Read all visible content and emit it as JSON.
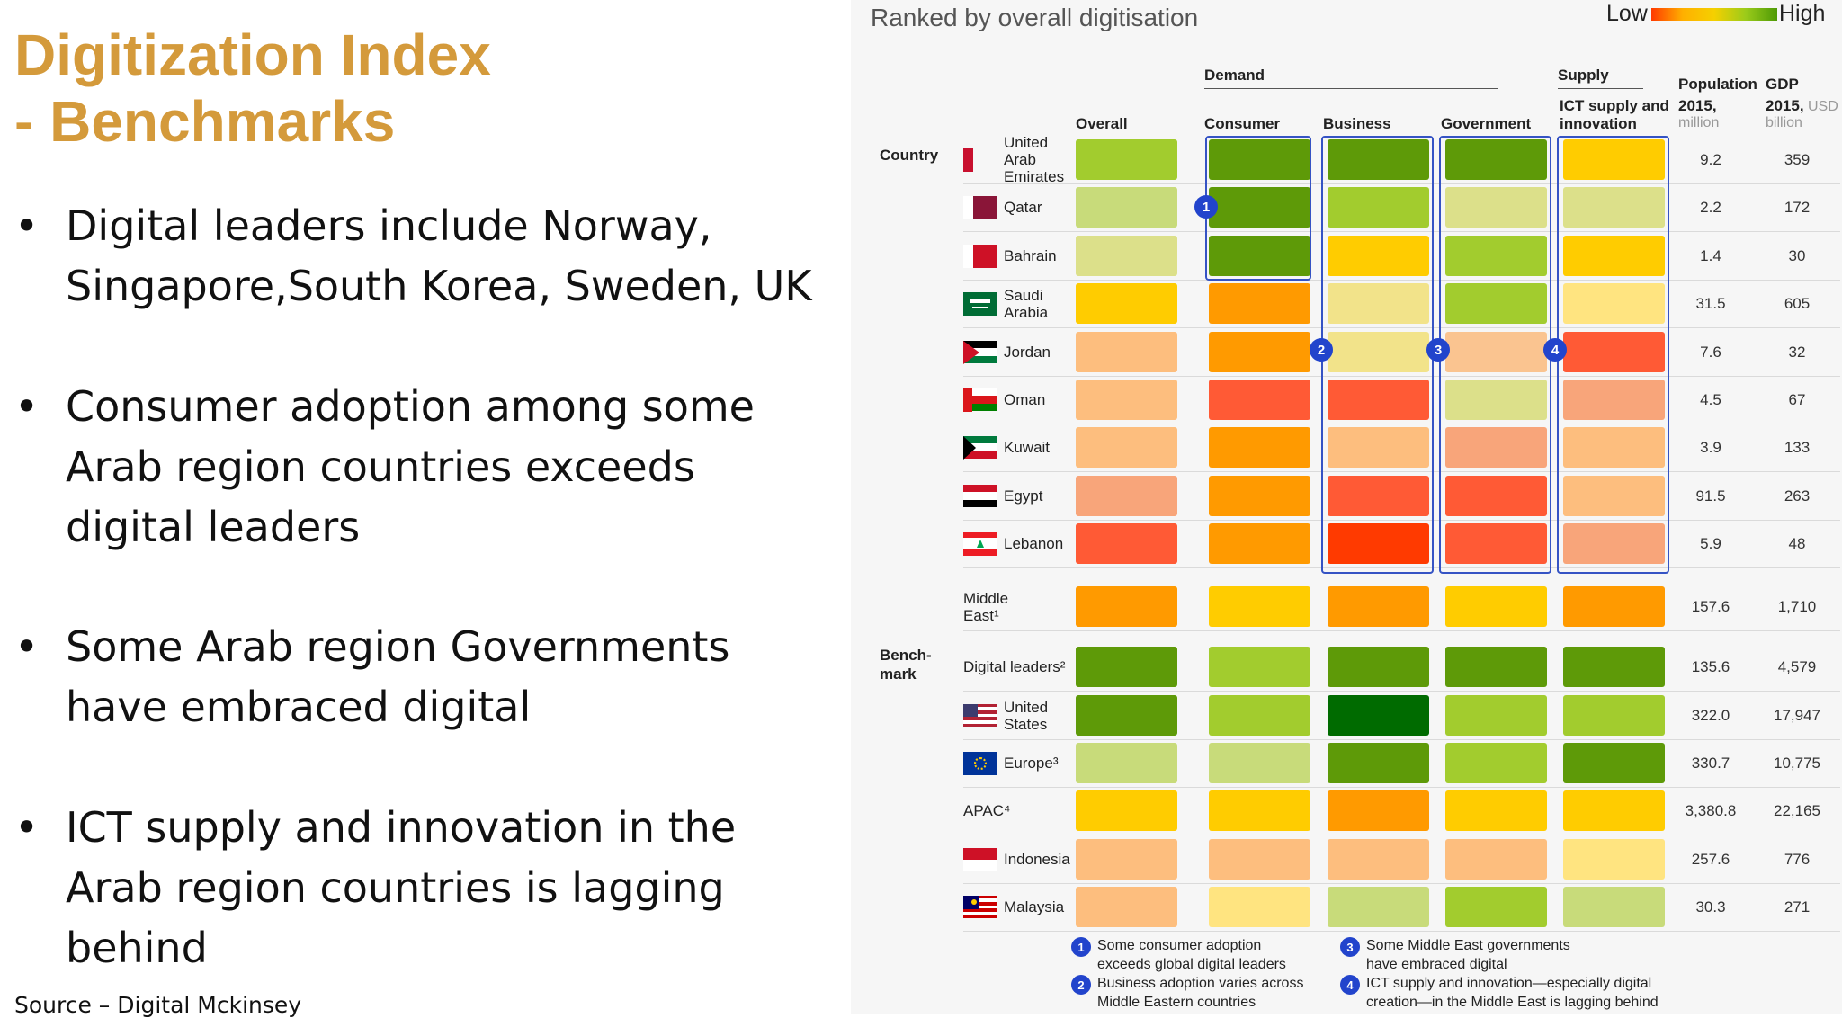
{
  "slide": {
    "title_line1": "Digitization Index",
    "title_line2": "- Benchmarks",
    "bullets": [
      {
        "lines": [
          "Digital leaders include Norway,",
          "Singapore,South Korea, Sweden, UK"
        ]
      },
      {
        "lines": [
          "Consumer adoption among some",
          "Arab region countries exceeds",
          "digital leaders"
        ]
      },
      {
        "lines": [
          "Some Arab region Governments",
          "have embraced digital"
        ]
      },
      {
        "lines": [
          "ICT supply and innovation in the",
          "Arab region countries is lagging",
          "behind"
        ]
      }
    ],
    "bullet_symbol": "•",
    "source": "Source – Digital Mckinsey"
  },
  "figure": {
    "subtitle": "Ranked by overall digitisation",
    "legend": {
      "low": "Low",
      "high": "High",
      "colors": [
        "#FF3A00",
        "#FFB000",
        "#F5D000",
        "#9BCB1A",
        "#4E9A06"
      ]
    },
    "headers": {
      "demand": "Demand",
      "supply": "Supply",
      "overall": "Overall",
      "consumer": "Consumer",
      "business": "Business",
      "government": "Government",
      "ict_line1": "ICT supply and",
      "ict_line2": "innovation",
      "pop_line1": "Population",
      "pop_line2": "2015,",
      "pop_unit": "million",
      "gdp_line1": "GDP",
      "gdp_line2": "2015,",
      "gdp_unit1": "USD",
      "gdp_unit2": "billion"
    },
    "side_labels": {
      "country": "Country",
      "benchmark_line1": "Bench-",
      "benchmark_line2": "mark"
    },
    "palette": {
      "dg": "#5E9A08",
      "mg": "#89BC1C",
      "lg": "#A2CC2E",
      "pg": "#C8DB7A",
      "yg": "#DCE08A",
      "py": "#F2E38A",
      "y": "#FFCC00",
      "ly": "#FFE480",
      "or": "#FF9A00",
      "lo": "#FDBE7E",
      "po": "#FAC490",
      "sa": "#F8A57A",
      "rd": "#FF5A35",
      "dr": "#FF3A00",
      "vg": "#006B00"
    },
    "countries": [
      {
        "label": [
          "United",
          "Arab",
          "Emirates"
        ],
        "flag": "uae",
        "cells": [
          "lg",
          "dg",
          "dg",
          "dg",
          "y"
        ],
        "population": "9.2",
        "gdp": "359"
      },
      {
        "label": [
          "Qatar"
        ],
        "flag": "qatar",
        "cells": [
          "pg",
          "dg",
          "lg",
          "yg",
          "yg"
        ],
        "population": "2.2",
        "gdp": "172"
      },
      {
        "label": [
          "Bahrain"
        ],
        "flag": "bahrain",
        "cells": [
          "yg",
          "dg",
          "y",
          "lg",
          "y"
        ],
        "population": "1.4",
        "gdp": "30"
      },
      {
        "label": [
          "Saudi",
          "Arabia"
        ],
        "flag": "saudi",
        "cells": [
          "y",
          "or",
          "py",
          "lg",
          "ly"
        ],
        "population": "31.5",
        "gdp": "605"
      },
      {
        "label": [
          "Jordan"
        ],
        "flag": "jordan",
        "cells": [
          "lo",
          "or",
          "py",
          "po",
          "rd"
        ],
        "population": "7.6",
        "gdp": "32"
      },
      {
        "label": [
          "Oman"
        ],
        "flag": "oman",
        "cells": [
          "lo",
          "rd",
          "rd",
          "yg",
          "sa"
        ],
        "population": "4.5",
        "gdp": "67"
      },
      {
        "label": [
          "Kuwait"
        ],
        "flag": "kuwait",
        "cells": [
          "lo",
          "or",
          "lo",
          "sa",
          "lo"
        ],
        "population": "3.9",
        "gdp": "133"
      },
      {
        "label": [
          "Egypt"
        ],
        "flag": "egypt",
        "cells": [
          "sa",
          "or",
          "rd",
          "rd",
          "lo"
        ],
        "population": "91.5",
        "gdp": "263"
      },
      {
        "label": [
          "Lebanon"
        ],
        "flag": "lebanon",
        "cells": [
          "rd",
          "or",
          "dr",
          "rd",
          "sa"
        ],
        "population": "5.9",
        "gdp": "48"
      }
    ],
    "benchmarks": [
      {
        "label": [
          "Middle",
          "East¹"
        ],
        "flag": "",
        "cells": [
          "or",
          "y",
          "or",
          "y",
          "or"
        ],
        "population": "157.6",
        "gdp": "1,710"
      },
      {
        "label": [
          "Digital leaders²"
        ],
        "flag": "",
        "cells": [
          "dg",
          "lg",
          "dg",
          "dg",
          "dg"
        ],
        "population": "135.6",
        "gdp": "4,579"
      },
      {
        "label": [
          "United",
          "States"
        ],
        "flag": "us",
        "cells": [
          "dg",
          "lg",
          "vg",
          "lg",
          "lg"
        ],
        "population": "322.0",
        "gdp": "17,947"
      },
      {
        "label": [
          "Europe³"
        ],
        "flag": "eu",
        "cells": [
          "pg",
          "pg",
          "dg",
          "lg",
          "dg"
        ],
        "population": "330.7",
        "gdp": "10,775"
      },
      {
        "label": [
          "APAC⁴"
        ],
        "flag": "",
        "cells": [
          "y",
          "y",
          "or",
          "y",
          "y"
        ],
        "population": "3,380.8",
        "gdp": "22,165"
      },
      {
        "label": [
          "Indonesia"
        ],
        "flag": "indonesia",
        "cells": [
          "lo",
          "lo",
          "lo",
          "lo",
          "ly"
        ],
        "population": "257.6",
        "gdp": "776"
      },
      {
        "label": [
          "Malaysia"
        ],
        "flag": "malaysia",
        "cells": [
          "lo",
          "ly",
          "pg",
          "lg",
          "pg"
        ],
        "population": "30.3",
        "gdp": "271"
      }
    ],
    "markers": [
      "1",
      "2",
      "3",
      "4"
    ],
    "notes": [
      {
        "num": "1",
        "lines": [
          "Some consumer adoption",
          "exceeds global digital leaders"
        ]
      },
      {
        "num": "2",
        "lines": [
          "Business adoption varies across",
          "Middle Eastern countries"
        ]
      },
      {
        "num": "3",
        "lines": [
          "Some Middle East governments",
          "have embraced digital"
        ]
      },
      {
        "num": "4",
        "lines": [
          "ICT supply and innovation—especially digital",
          "creation—in the Middle East is lagging behind"
        ]
      }
    ]
  }
}
